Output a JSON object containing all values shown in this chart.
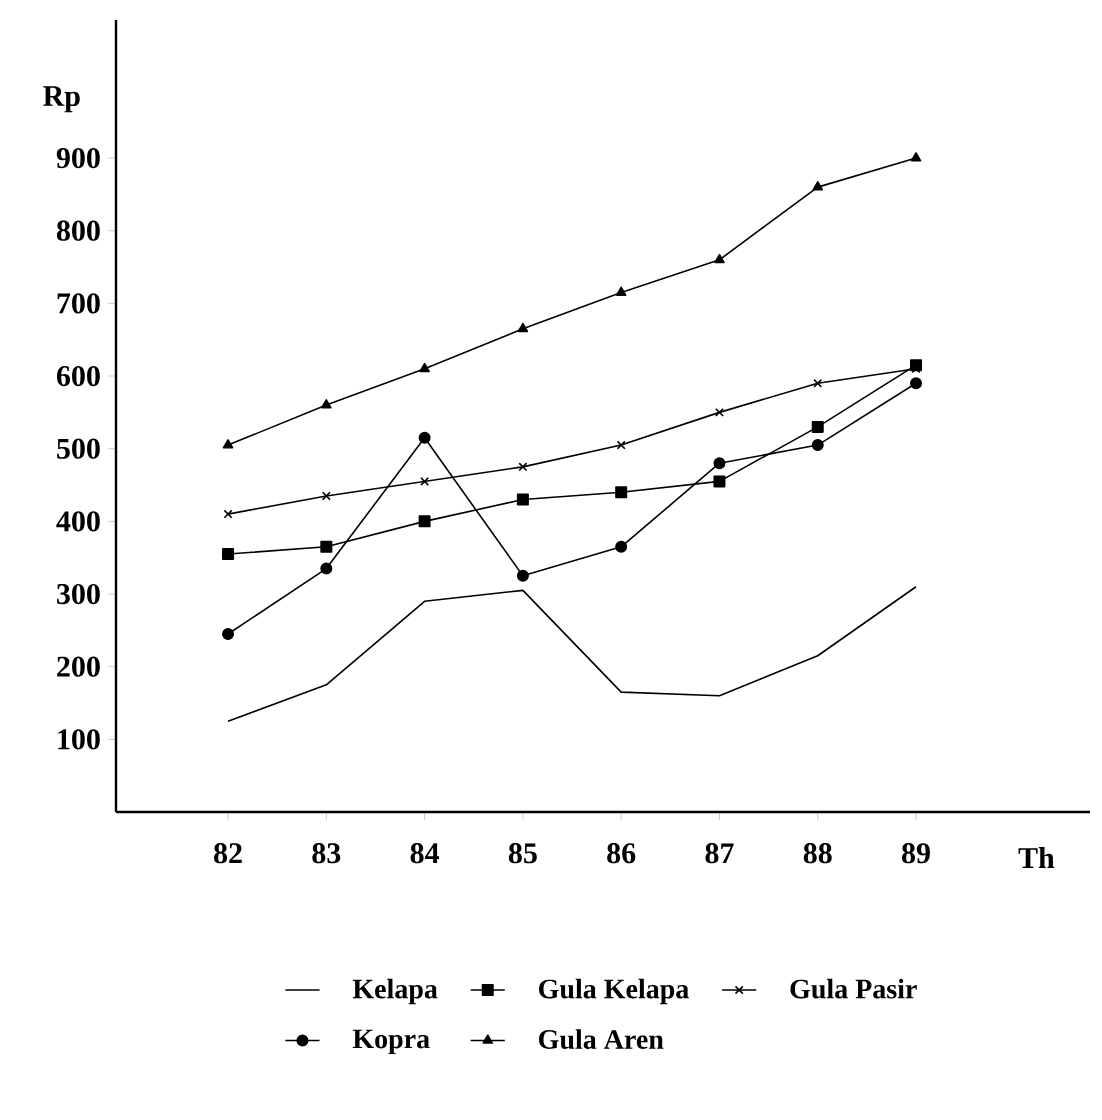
{
  "chart_data": {
    "type": "line",
    "xlabel": "Th",
    "ylabel": "Rp",
    "x": [
      82,
      83,
      84,
      85,
      86,
      87,
      88,
      89
    ],
    "xlim": [
      80.86,
      90.77
    ],
    "xticks": [
      82,
      83,
      84,
      85,
      86,
      87,
      88,
      89
    ],
    "ylim": [
      0,
      1090
    ],
    "yticks": [
      100,
      200,
      300,
      400,
      500,
      600,
      700,
      800,
      900
    ],
    "legend": "bottom",
    "grid": false,
    "line_style": "solid",
    "series": [
      {
        "name": "Kelapa",
        "color": "#000000",
        "marker": "none",
        "values": [
          125,
          175,
          290,
          305,
          165,
          160,
          215,
          310
        ]
      },
      {
        "name": "Gula Kelapa",
        "color": "#000000",
        "marker": "square",
        "values": [
          355,
          365,
          400,
          430,
          440,
          455,
          530,
          615
        ]
      },
      {
        "name": "Gula Pasir",
        "color": "#000000",
        "marker": "cross",
        "values": [
          410,
          435,
          455,
          475,
          505,
          550,
          590,
          610
        ]
      },
      {
        "name": "Kopra",
        "color": "#000000",
        "marker": "circle",
        "values": [
          245,
          335,
          515,
          325,
          365,
          480,
          505,
          590
        ]
      },
      {
        "name": "Gula Aren",
        "color": "#000000",
        "marker": "triangle",
        "values": [
          505,
          560,
          610,
          665,
          715,
          760,
          860,
          900
        ]
      }
    ]
  }
}
